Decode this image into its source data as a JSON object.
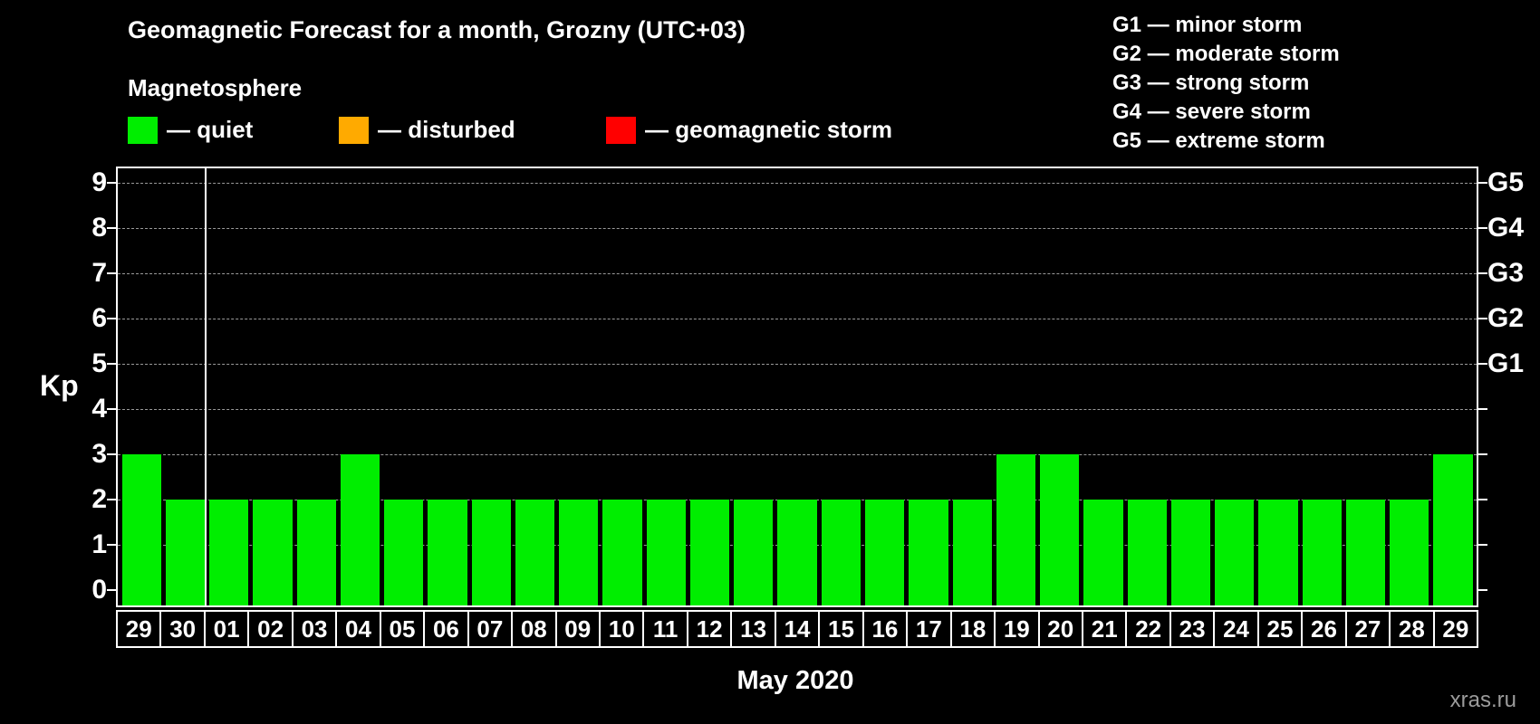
{
  "chart_data": {
    "type": "bar",
    "title": "Geomagnetic Forecast for a month, Grozny (UTC+03)",
    "subtitle": "Magnetosphere",
    "xlabel": "May 2020",
    "ylabel": "Kp",
    "ylim": [
      0,
      9
    ],
    "y_ticks": [
      0,
      1,
      2,
      3,
      4,
      5,
      6,
      7,
      8,
      9
    ],
    "grid": true,
    "categories": [
      "29",
      "30",
      "01",
      "02",
      "03",
      "04",
      "05",
      "06",
      "07",
      "08",
      "09",
      "10",
      "11",
      "12",
      "13",
      "14",
      "15",
      "16",
      "17",
      "18",
      "19",
      "20",
      "21",
      "22",
      "23",
      "24",
      "25",
      "26",
      "27",
      "28",
      "29"
    ],
    "values": [
      3,
      2,
      2,
      2,
      2,
      3,
      2,
      2,
      2,
      2,
      2,
      2,
      2,
      2,
      2,
      2,
      2,
      2,
      2,
      2,
      3,
      3,
      2,
      2,
      2,
      2,
      2,
      2,
      2,
      2,
      3
    ],
    "separator_after_index": 1,
    "colors": {
      "quiet": "#00ee00",
      "disturbed": "#ffaa00",
      "storm": "#ff0000",
      "background": "#000000",
      "text": "#ffffff"
    },
    "legend": [
      {
        "color_key": "quiet",
        "label": "— quiet"
      },
      {
        "color_key": "disturbed",
        "label": "— disturbed"
      },
      {
        "color_key": "storm",
        "label": "— geomagnetic storm"
      }
    ],
    "g_scale_legend": [
      "G1 — minor storm",
      "G2 — moderate storm",
      "G3 — strong storm",
      "G4 — severe storm",
      "G5 — extreme storm"
    ],
    "right_axis": {
      "labels": [
        {
          "text": "G5",
          "value": 9
        },
        {
          "text": "G4",
          "value": 8
        },
        {
          "text": "G3",
          "value": 7
        },
        {
          "text": "G2",
          "value": 6
        },
        {
          "text": "G1",
          "value": 5
        }
      ]
    },
    "watermark": "xras.ru"
  }
}
